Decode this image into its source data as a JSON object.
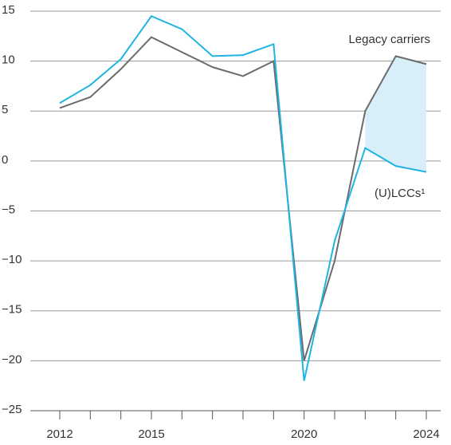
{
  "chart_data": {
    "type": "line",
    "x": [
      2012,
      2013,
      2014,
      2015,
      2016,
      2017,
      2018,
      2019,
      2020,
      2021,
      2022,
      2023,
      2024
    ],
    "series": [
      {
        "name": "Legacy carriers",
        "color": "#6b6b6b",
        "values": [
          5.3,
          6.4,
          9.2,
          12.4,
          10.9,
          9.4,
          8.5,
          10.0,
          -20.0,
          -10.0,
          5.0,
          10.5,
          9.7
        ]
      },
      {
        "name": "(U)LCCs¹",
        "color": "#1eb4e3",
        "values": [
          5.8,
          7.6,
          10.2,
          14.5,
          13.2,
          10.5,
          10.6,
          11.7,
          -22.0,
          -8.0,
          1.3,
          -0.5,
          -1.1
        ]
      }
    ],
    "shade_from": 2022,
    "shade_color": "#d8effa",
    "xlim": [
      2012,
      2024
    ],
    "xticks": [
      2012,
      2015,
      2020,
      2024
    ],
    "xminorticks": [
      2013,
      2014,
      2016,
      2017,
      2018,
      2019,
      2021,
      2022,
      2023
    ],
    "ylim": [
      -25,
      15
    ],
    "yticks": [
      {
        "value": -25,
        "label": "−25"
      },
      {
        "value": -20,
        "label": "−20"
      },
      {
        "value": -15,
        "label": "−15"
      },
      {
        "value": -10,
        "label": "−10"
      },
      {
        "value": -5,
        "label": "−5"
      },
      0,
      5,
      10,
      15
    ],
    "grid": true
  }
}
